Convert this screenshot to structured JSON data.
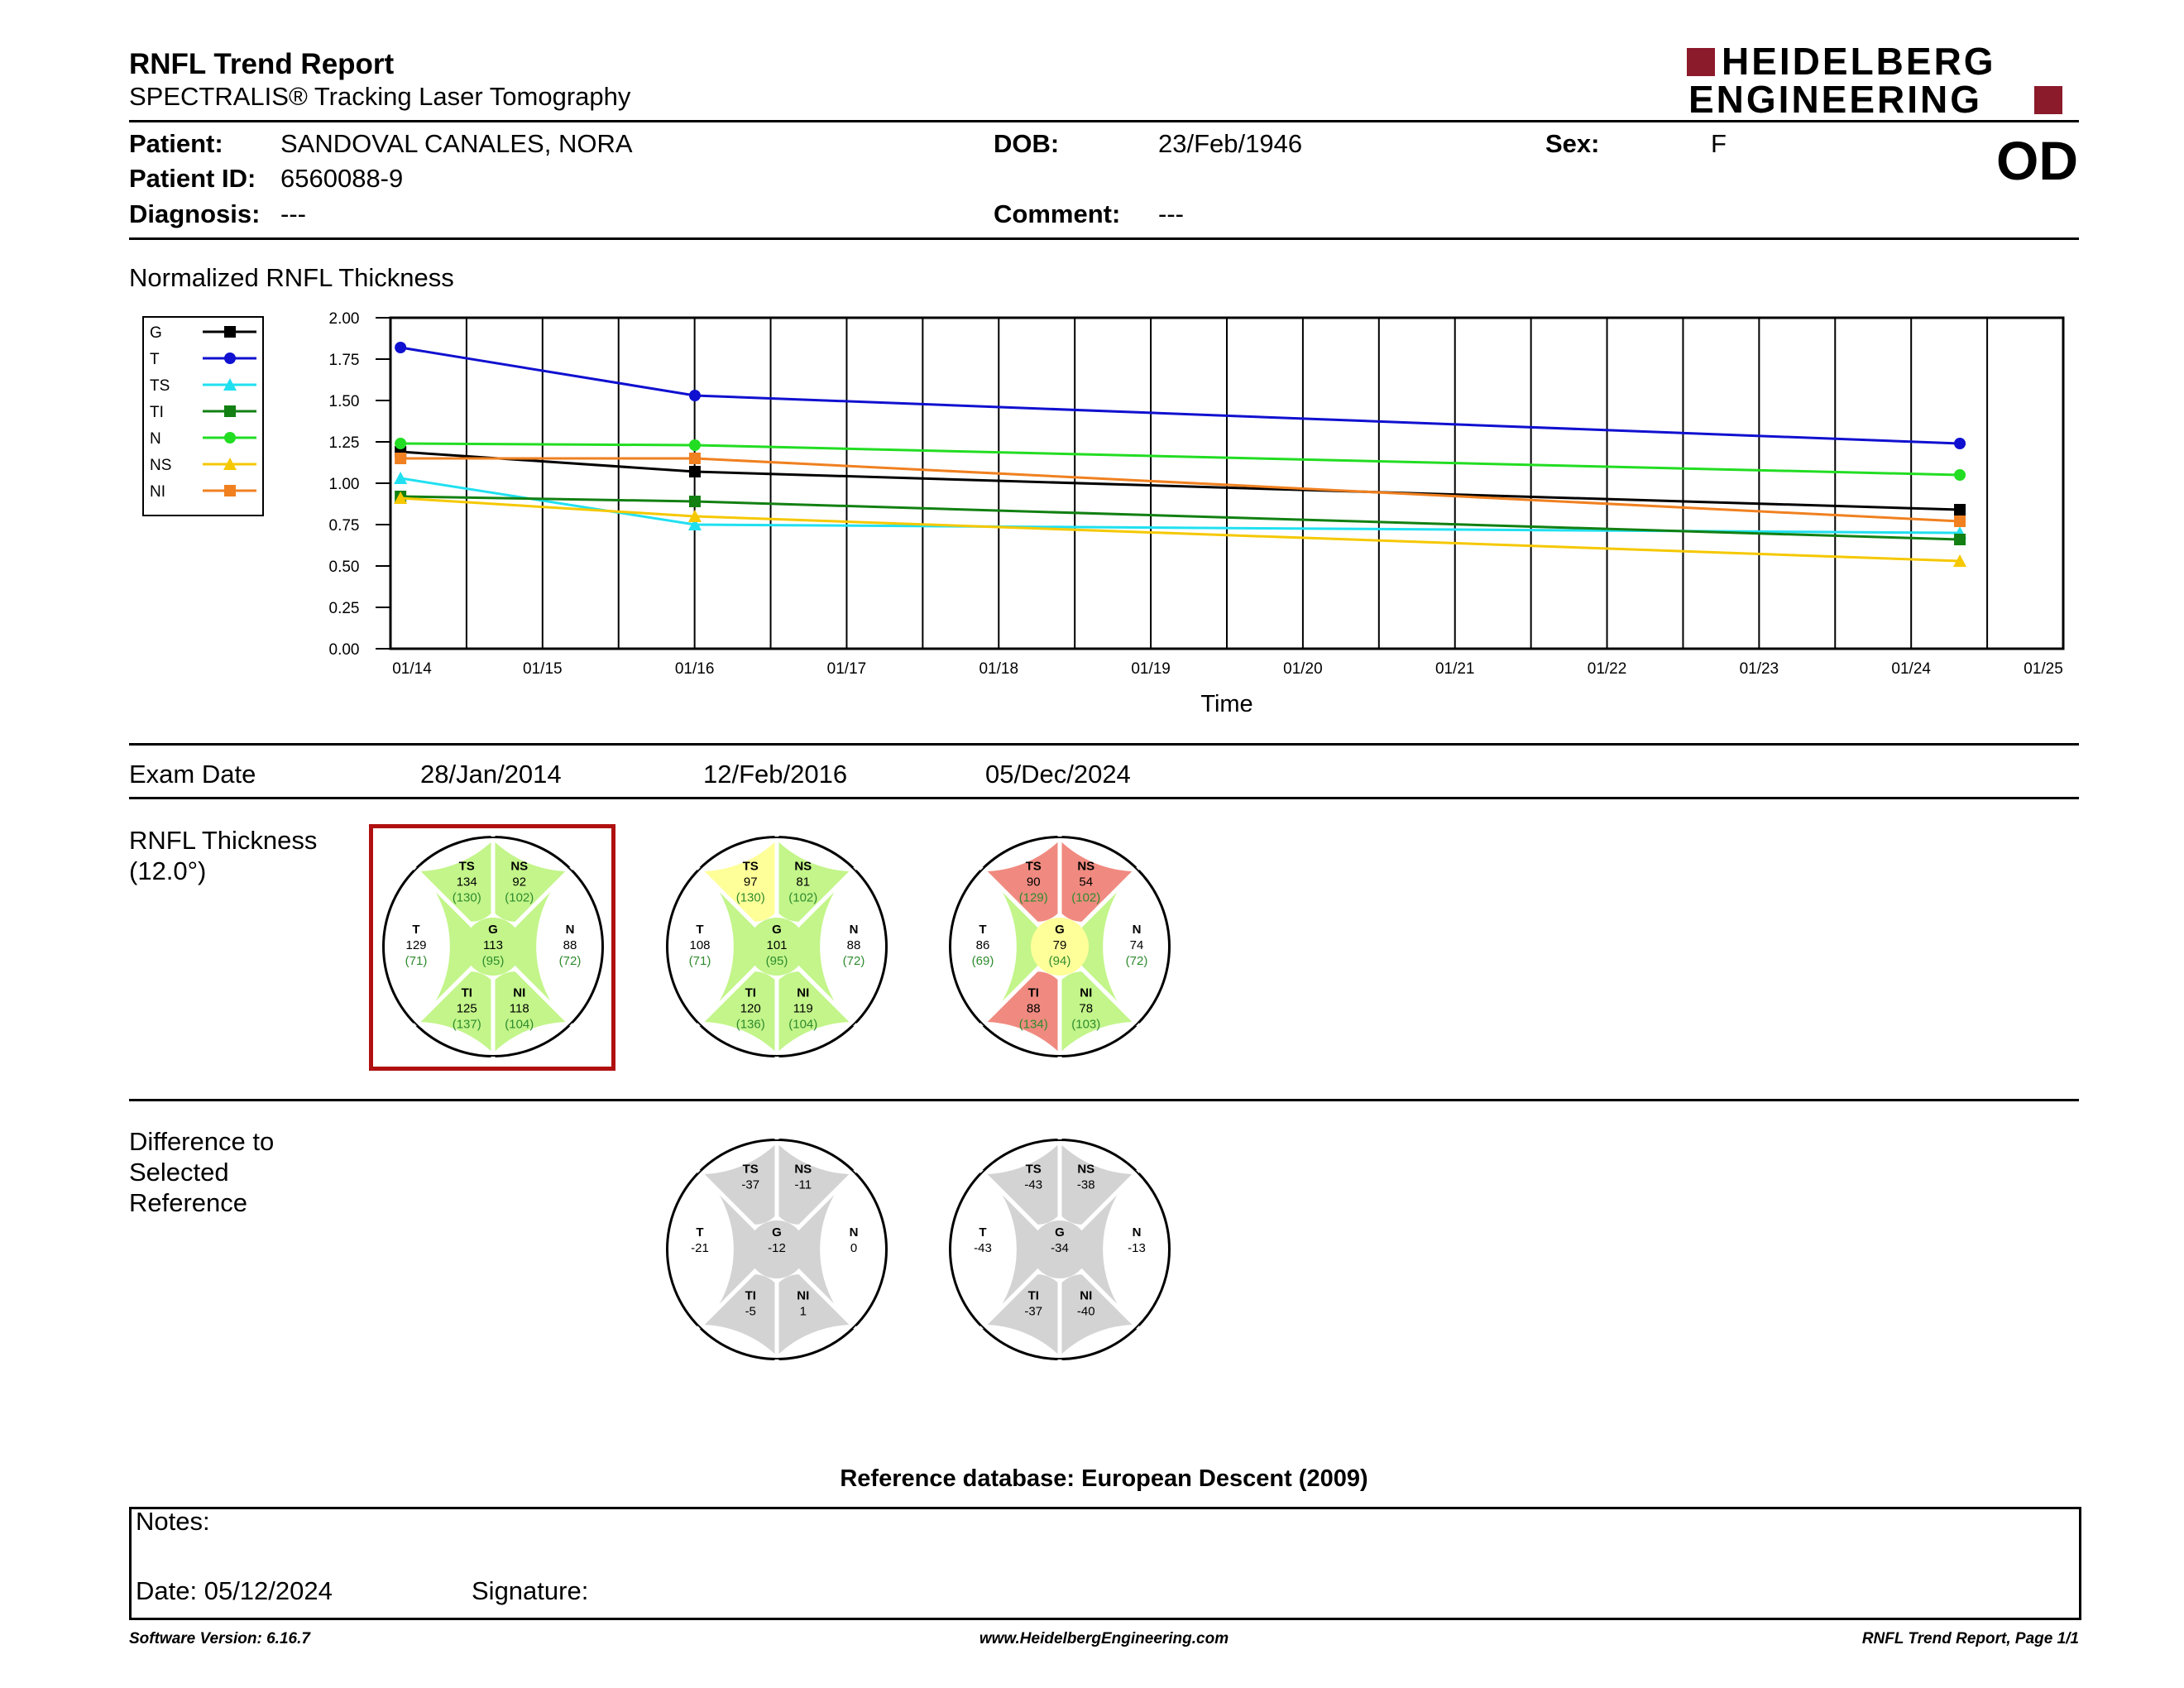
{
  "header": {
    "title": "RNFL Trend Report",
    "subtitle": "SPECTRALIS® Tracking Laser Tomography",
    "logo_line1": "HEIDELBERG",
    "logo_line2": "ENGINEERING",
    "logo_color": "#8B1A2B",
    "eye": "OD"
  },
  "patient": {
    "patient_label": "Patient:",
    "patient_value": "SANDOVAL CANALES, NORA",
    "id_label": "Patient ID:",
    "id_value": "6560088-9",
    "diagnosis_label": "Diagnosis:",
    "diagnosis_value": "---",
    "dob_label": "DOB:",
    "dob_value": "23/Feb/1946",
    "comment_label": "Comment:",
    "comment_value": "---",
    "sex_label": "Sex:",
    "sex_value": "F"
  },
  "chart_data": {
    "type": "line",
    "title": "Normalized RNFL Thickness",
    "xlabel": "Time",
    "ylabel": "",
    "ylim": [
      0,
      2
    ],
    "yticks": [
      "0.00",
      "0.25",
      "0.50",
      "0.75",
      "1.00",
      "1.25",
      "1.50",
      "1.75",
      "2.00"
    ],
    "xticks": [
      "01/14",
      "01/15",
      "01/16",
      "01/17",
      "01/18",
      "01/19",
      "01/20",
      "01/21",
      "01/22",
      "01/23",
      "01/24",
      "01/25"
    ],
    "x": [
      2014.07,
      2016.12,
      2024.93
    ],
    "grid": true,
    "legend_position": "top-left",
    "series": [
      {
        "name": "G",
        "color": "#000000",
        "marker": "square",
        "values": [
          1.19,
          1.07,
          0.84
        ]
      },
      {
        "name": "T",
        "color": "#1010D0",
        "marker": "circle",
        "values": [
          1.82,
          1.53,
          1.24
        ]
      },
      {
        "name": "TS",
        "color": "#20E0F0",
        "marker": "triangle",
        "values": [
          1.03,
          0.75,
          0.7
        ]
      },
      {
        "name": "TI",
        "color": "#128012",
        "marker": "square",
        "values": [
          0.92,
          0.89,
          0.66
        ]
      },
      {
        "name": "N",
        "color": "#22DD22",
        "marker": "circle",
        "values": [
          1.24,
          1.23,
          1.05
        ]
      },
      {
        "name": "NS",
        "color": "#F5C800",
        "marker": "triangle",
        "values": [
          0.91,
          0.8,
          0.53
        ]
      },
      {
        "name": "NI",
        "color": "#F08020",
        "marker": "square",
        "values": [
          1.15,
          1.15,
          0.77
        ]
      }
    ]
  },
  "exam": {
    "label": "Exam Date",
    "dates": [
      "28/Jan/2014",
      "12/Feb/2016",
      "05/Dec/2024"
    ]
  },
  "thickness": {
    "label_line1": "RNFL Thickness",
    "label_line2": "(12.0°)",
    "selected_index": 0,
    "selected_color": "#B01010",
    "colors": {
      "green": "#C3F58A",
      "yellow": "#FFFF99",
      "red": "#F08A80",
      "grey": "#D3D3D3",
      "normal_text": "#2E8B2E"
    },
    "circles": [
      {
        "G": {
          "v": "113",
          "n": "(95)",
          "c": "green"
        },
        "T": {
          "v": "129",
          "n": "(71)",
          "c": "green"
        },
        "N": {
          "v": "88",
          "n": "(72)",
          "c": "green"
        },
        "TS": {
          "v": "134",
          "n": "(130)",
          "c": "green"
        },
        "NS": {
          "v": "92",
          "n": "(102)",
          "c": "green"
        },
        "TI": {
          "v": "125",
          "n": "(137)",
          "c": "green"
        },
        "NI": {
          "v": "118",
          "n": "(104)",
          "c": "green"
        }
      },
      {
        "G": {
          "v": "101",
          "n": "(95)",
          "c": "green"
        },
        "T": {
          "v": "108",
          "n": "(71)",
          "c": "green"
        },
        "N": {
          "v": "88",
          "n": "(72)",
          "c": "green"
        },
        "TS": {
          "v": "97",
          "n": "(130)",
          "c": "yellow"
        },
        "NS": {
          "v": "81",
          "n": "(102)",
          "c": "green"
        },
        "TI": {
          "v": "120",
          "n": "(136)",
          "c": "green"
        },
        "NI": {
          "v": "119",
          "n": "(104)",
          "c": "green"
        }
      },
      {
        "G": {
          "v": "79",
          "n": "(94)",
          "c": "yellow"
        },
        "T": {
          "v": "86",
          "n": "(69)",
          "c": "green"
        },
        "N": {
          "v": "74",
          "n": "(72)",
          "c": "green"
        },
        "TS": {
          "v": "90",
          "n": "(129)",
          "c": "red"
        },
        "NS": {
          "v": "54",
          "n": "(102)",
          "c": "red"
        },
        "TI": {
          "v": "88",
          "n": "(134)",
          "c": "red"
        },
        "NI": {
          "v": "78",
          "n": "(103)",
          "c": "green"
        }
      }
    ]
  },
  "difference": {
    "label_line1": "Difference to",
    "label_line2": "Selected",
    "label_line3": "Reference",
    "circles": [
      null,
      {
        "G": "-12",
        "T": "-21",
        "N": "0",
        "TS": "-37",
        "NS": "-11",
        "TI": "-5",
        "NI": "1"
      },
      {
        "G": "-34",
        "T": "-43",
        "N": "-13",
        "TS": "-43",
        "NS": "-38",
        "TI": "-37",
        "NI": "-40"
      }
    ]
  },
  "reference": {
    "text": "Reference database: European Descent (2009)"
  },
  "notes": {
    "notes_label": "Notes:",
    "date_label": "Date: 05/12/2024",
    "signature_label": "Signature:"
  },
  "footer": {
    "version": "Software Version: 6.16.7",
    "website": "www.HeidelbergEngineering.com",
    "page": "RNFL Trend Report, Page 1/1"
  }
}
